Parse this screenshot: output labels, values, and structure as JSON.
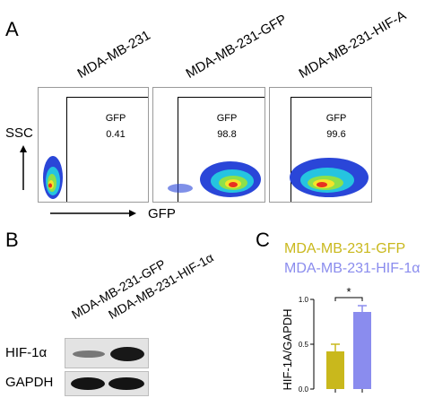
{
  "panel_letters": {
    "a": "A",
    "b": "B",
    "c": "C"
  },
  "flow": {
    "samples": [
      {
        "label": "MDA-MB-231",
        "gate_label": "GFP",
        "gate_value": "0.41"
      },
      {
        "label": "MDA-MB-231-GFP",
        "gate_label": "GFP",
        "gate_value": "98.8"
      },
      {
        "label": "MDA-MB-231-HIF-A",
        "gate_label": "GFP",
        "gate_value": "99.6"
      }
    ],
    "y_axis_label": "SSC",
    "x_axis_label": "GFP"
  },
  "blot": {
    "lane_labels": [
      "MDA-MB-231-GFP",
      "MDA-MB-231-HIF-1α"
    ],
    "row_labels": [
      "HIF-1α",
      "GAPDH"
    ]
  },
  "chart_data": {
    "type": "bar",
    "categories": [
      "MDA-MB-231-GFP",
      "MDA-MB-231-HIF-1α"
    ],
    "values": [
      0.42,
      0.86
    ],
    "errors": [
      0.08,
      0.07
    ],
    "colors": [
      "#c9b81c",
      "#8a8cee"
    ],
    "ylabel": "HIF-1A/GAPDH",
    "ylim": [
      0,
      1.0
    ],
    "yticks": [
      "0.0",
      "0.5",
      "1.0"
    ],
    "significance": "*",
    "legend": [
      {
        "label": "MDA-MB-231-GFP",
        "color": "#c9b81c"
      },
      {
        "label": "MDA-MB-231-HIF-1α",
        "color": "#8a8cee"
      }
    ]
  }
}
